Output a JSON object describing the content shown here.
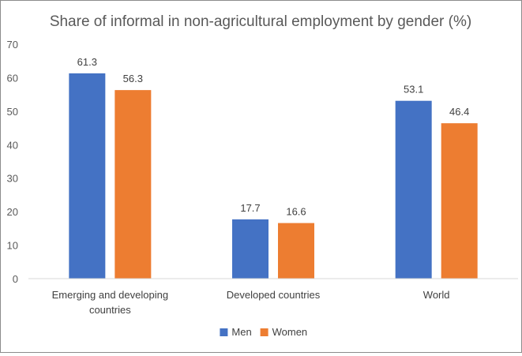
{
  "chart_data": {
    "type": "bar",
    "title": "Share of informal in non-agricultural employment by gender (%)",
    "xlabel": "",
    "ylabel": "",
    "categories": [
      [
        "Emerging and developing",
        "countries"
      ],
      [
        "Developed countries"
      ],
      [
        "World"
      ]
    ],
    "series": [
      {
        "name": "Men",
        "color": "#4472C4",
        "values": [
          61.3,
          17.7,
          53.1
        ]
      },
      {
        "name": "Women",
        "color": "#ED7D31",
        "values": [
          56.3,
          16.6,
          46.4
        ]
      }
    ],
    "yticks": [
      "0",
      "10",
      "20",
      "30",
      "40",
      "50",
      "60",
      "70"
    ],
    "ylim": [
      0,
      70
    ],
    "grid": false,
    "legend_position": "bottom",
    "data_labels": true
  }
}
